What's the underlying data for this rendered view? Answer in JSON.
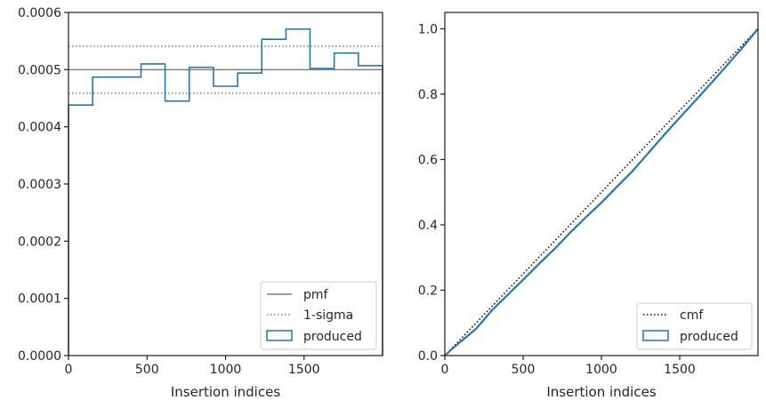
{
  "chart_data": [
    {
      "type": "step",
      "xlabel": "Insertion indices",
      "ylabel": "",
      "xlim": [
        0,
        2000
      ],
      "ylim": [
        0,
        0.0006
      ],
      "xticks": [
        0,
        500,
        1000,
        1500
      ],
      "xtick_labels": [
        "0",
        "500",
        "1000",
        "1500"
      ],
      "yticks": [
        0,
        0.0001,
        0.0002,
        0.0003,
        0.0004,
        0.0005,
        0.0006
      ],
      "ytick_labels": [
        "0.0000",
        "0.0001",
        "0.0002",
        "0.0003",
        "0.0004",
        "0.0005",
        "0.0006"
      ],
      "grid": false,
      "legend_position": "lower-right",
      "hlines": [
        {
          "name": "pmf",
          "y": 0.0005,
          "style": "solid",
          "color": "#808080"
        },
        {
          "name": "1-sigma",
          "y": 0.000541,
          "style": "dotted",
          "color": "#808080"
        },
        {
          "name": "1-sigma",
          "y": 0.000459,
          "style": "dotted",
          "color": "#808080",
          "legend": false
        }
      ],
      "series": [
        {
          "name": "produced",
          "color": "#1f77b4",
          "bin_edges": [
            0,
            154,
            308,
            462,
            615,
            769,
            923,
            1077,
            1231,
            1385,
            1538,
            1692,
            1846,
            2000
          ],
          "values": [
            0.000438,
            0.000487,
            0.000487,
            0.00051,
            0.000445,
            0.000504,
            0.000471,
            0.000494,
            0.000553,
            0.000571,
            0.000502,
            0.000529,
            0.000507
          ]
        }
      ],
      "legend": [
        {
          "label": "pmf",
          "kind": "solid-line",
          "color": "#808080"
        },
        {
          "label": "1-sigma",
          "kind": "dotted-line",
          "color": "#808080"
        },
        {
          "label": "produced",
          "kind": "box",
          "color": "#1f77b4"
        }
      ]
    },
    {
      "type": "line",
      "xlabel": "Insertion indices",
      "ylabel": "",
      "xlim": [
        0,
        2000
      ],
      "ylim": [
        0,
        1.05
      ],
      "xticks": [
        0,
        500,
        1000,
        1500
      ],
      "xtick_labels": [
        "0",
        "500",
        "1000",
        "1500"
      ],
      "yticks": [
        0,
        0.2,
        0.4,
        0.6,
        0.8,
        1.0
      ],
      "ytick_labels": [
        "0.0",
        "0.2",
        "0.4",
        "0.6",
        "0.8",
        "1.0"
      ],
      "grid": false,
      "legend_position": "lower-right",
      "series": [
        {
          "name": "cmf",
          "style": "dotted",
          "color": "#000000",
          "x": [
            0,
            2000
          ],
          "y": [
            0,
            1.0
          ]
        },
        {
          "name": "produced",
          "style": "solid",
          "color": "#1f77b4",
          "x": [
            0,
            50,
            100,
            200,
            300,
            400,
            500,
            600,
            700,
            800,
            900,
            1000,
            1100,
            1200,
            1300,
            1400,
            1500,
            1600,
            1700,
            1800,
            1900,
            1950,
            2000
          ],
          "y": [
            0,
            0.022,
            0.042,
            0.082,
            0.138,
            0.185,
            0.232,
            0.28,
            0.326,
            0.376,
            0.423,
            0.468,
            0.517,
            0.565,
            0.62,
            0.675,
            0.728,
            0.78,
            0.833,
            0.887,
            0.942,
            0.971,
            1.0
          ]
        }
      ],
      "legend": [
        {
          "label": "cmf",
          "kind": "dotted-line",
          "color": "#000000"
        },
        {
          "label": "produced",
          "kind": "box",
          "color": "#1f77b4"
        }
      ]
    }
  ]
}
